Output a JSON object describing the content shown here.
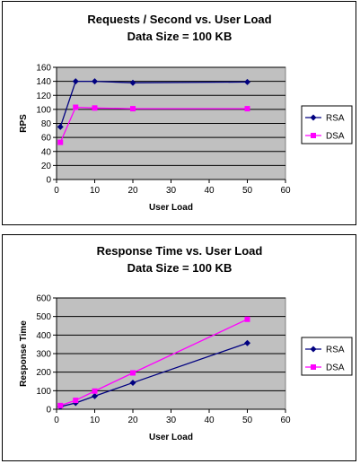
{
  "chart_data": [
    {
      "type": "line",
      "title": "Requests / Second  vs.  User Load",
      "subtitle": "Data Size = 100 KB",
      "xlabel": "User Load",
      "ylabel": "RPS",
      "xlim": [
        0,
        60
      ],
      "ylim": [
        0,
        160
      ],
      "xticks": [
        0,
        10,
        20,
        30,
        40,
        50,
        60
      ],
      "yticks": [
        0,
        20,
        40,
        60,
        80,
        100,
        120,
        140,
        160
      ],
      "grid": true,
      "legend": "right",
      "series": [
        {
          "name": "RSA",
          "color": "#000080",
          "marker": "diamond",
          "x": [
            1,
            5,
            10,
            20,
            50
          ],
          "y": [
            75,
            140,
            140,
            138,
            139
          ]
        },
        {
          "name": "DSA",
          "color": "#ff00ff",
          "marker": "square",
          "x": [
            1,
            5,
            10,
            20,
            50
          ],
          "y": [
            53,
            103,
            102,
            101,
            101
          ]
        }
      ]
    },
    {
      "type": "line",
      "title": "Response Time  vs.  User Load",
      "subtitle": "Data Size = 100 KB",
      "xlabel": "User Load",
      "ylabel": "Response Time",
      "xlim": [
        0,
        60
      ],
      "ylim": [
        0,
        600
      ],
      "xticks": [
        0,
        10,
        20,
        30,
        40,
        50,
        60
      ],
      "yticks": [
        0,
        100,
        200,
        300,
        400,
        500,
        600
      ],
      "grid": true,
      "legend": "right",
      "series": [
        {
          "name": "RSA",
          "color": "#000080",
          "marker": "diamond",
          "x": [
            1,
            5,
            10,
            20,
            50
          ],
          "y": [
            14,
            34,
            71,
            143,
            357
          ]
        },
        {
          "name": "DSA",
          "color": "#ff00ff",
          "marker": "square",
          "x": [
            1,
            5,
            10,
            20,
            50
          ],
          "y": [
            20,
            48,
            98,
            196,
            485
          ]
        }
      ]
    }
  ]
}
